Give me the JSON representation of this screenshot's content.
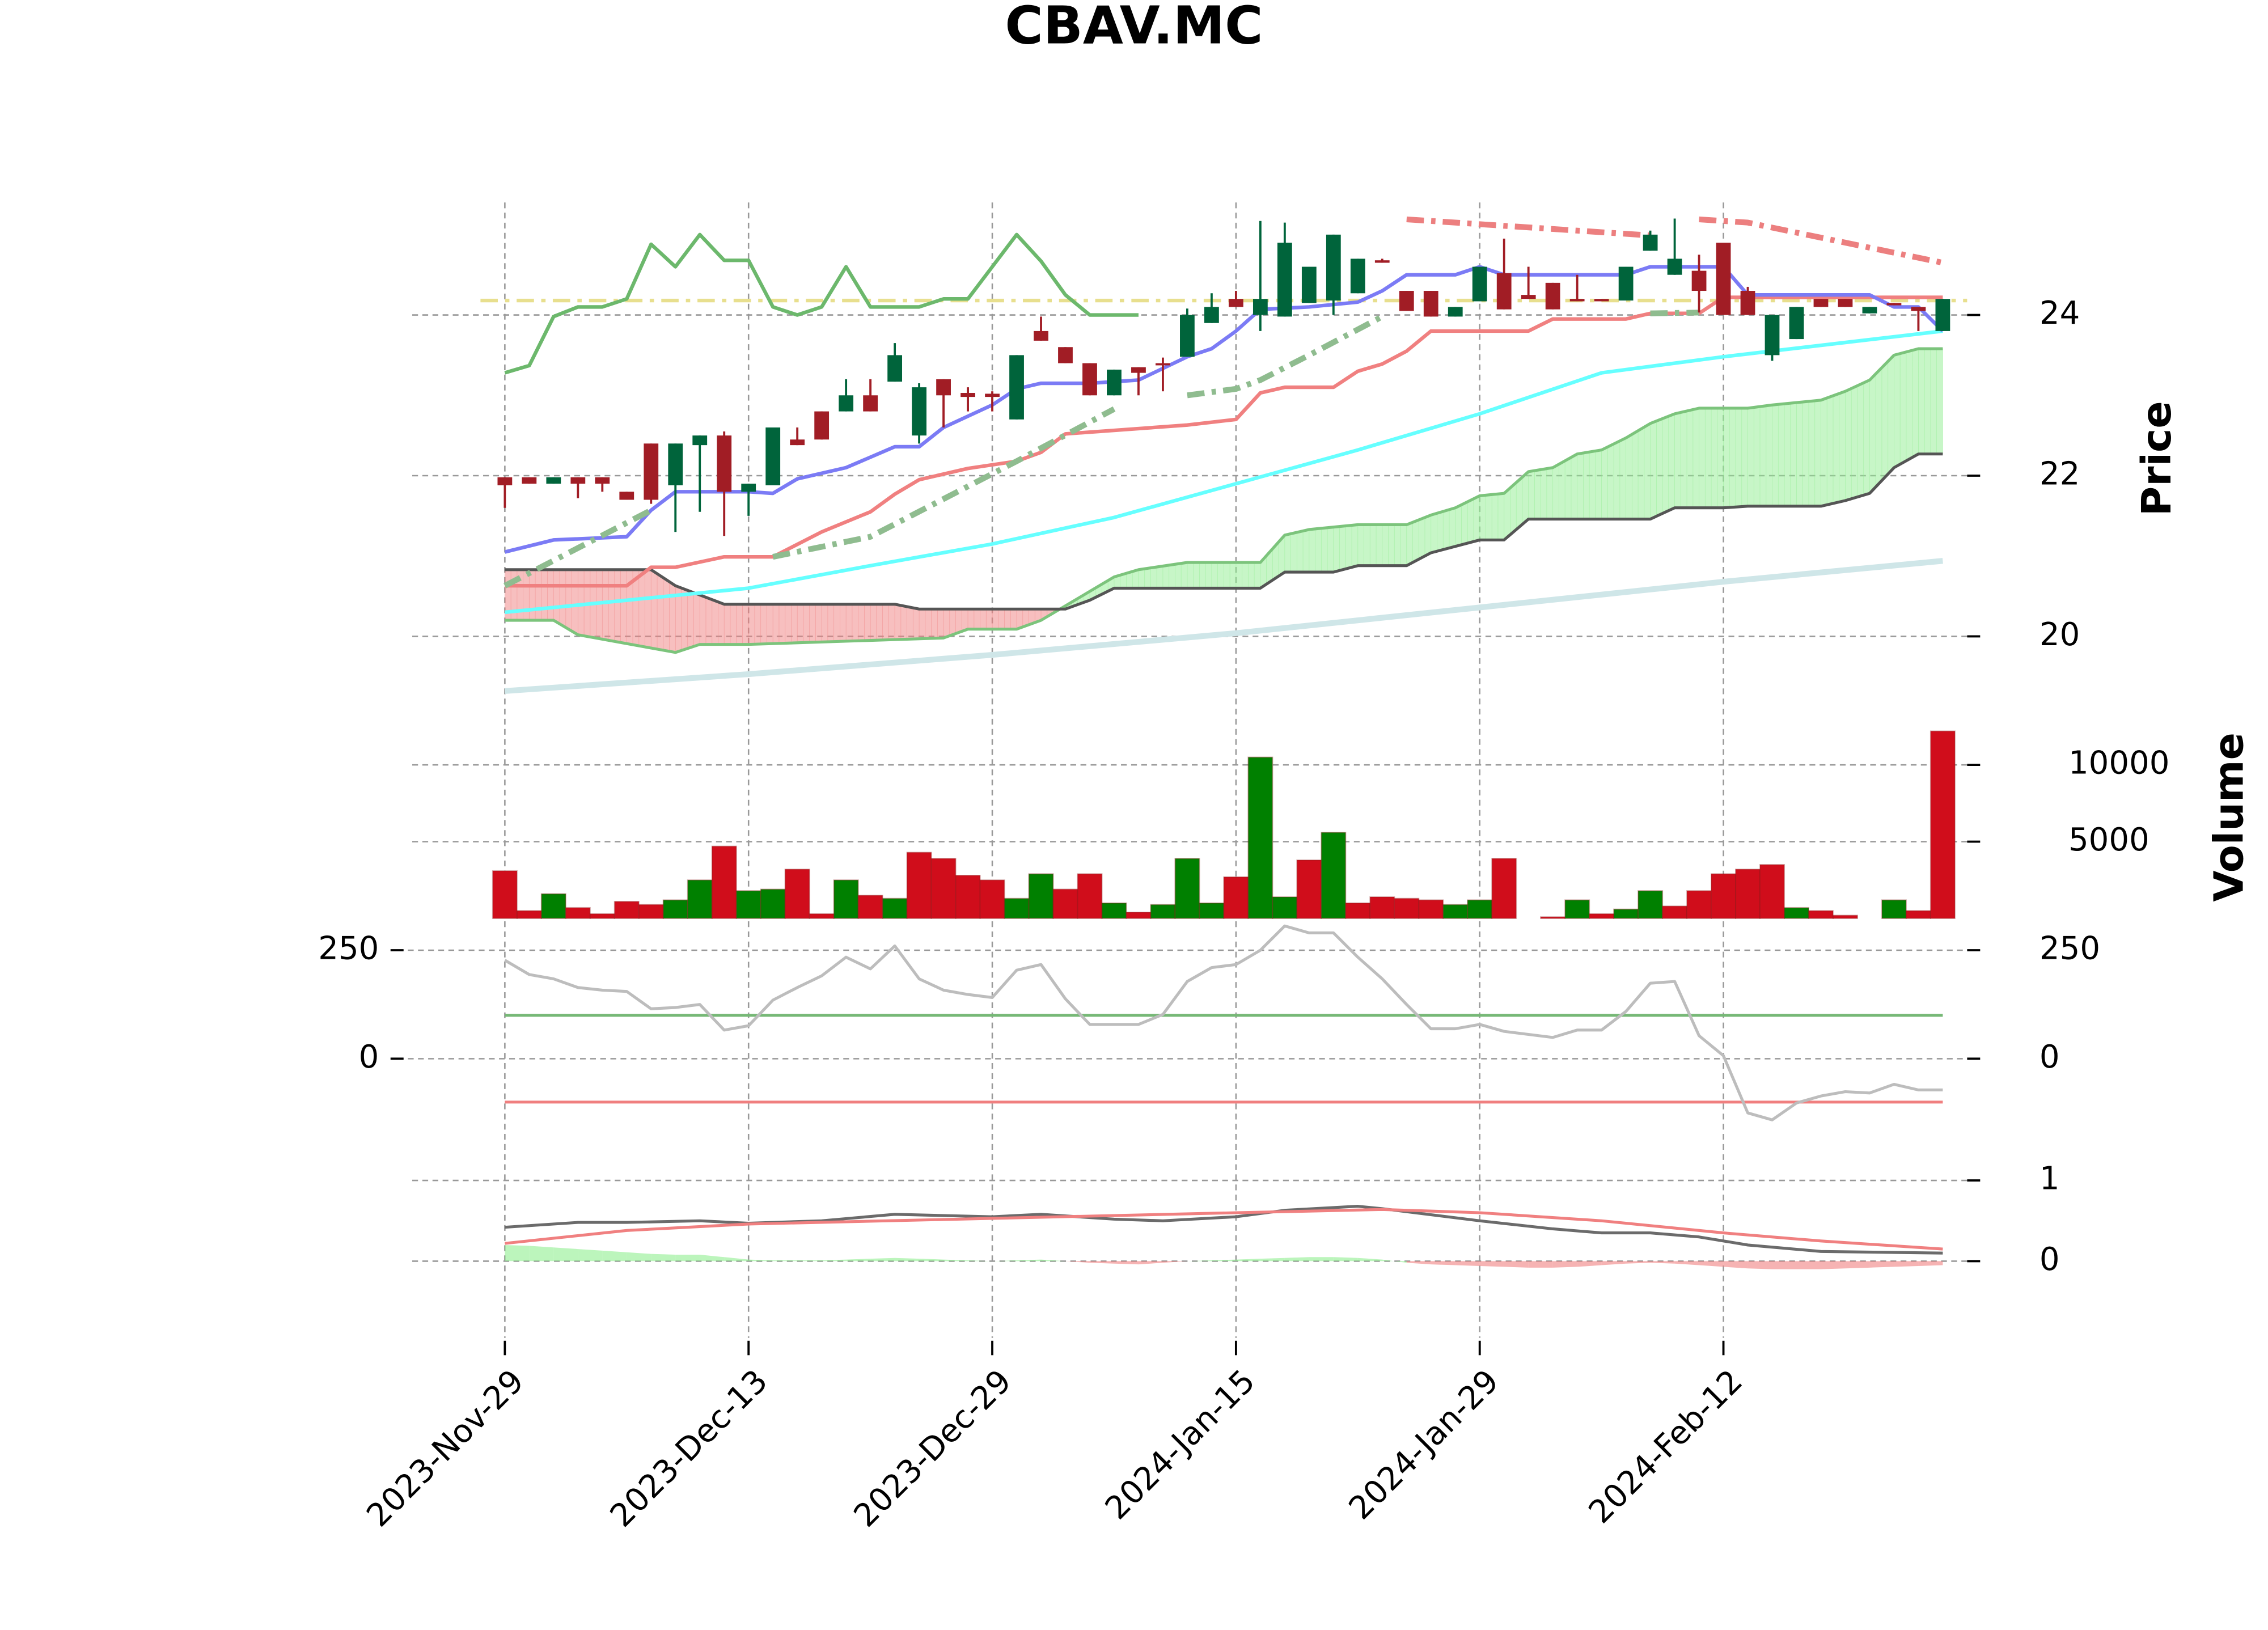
{
  "chart_data": [
    {
      "type": "candlestick",
      "title": "CBAV.MC",
      "ylabel": "Price",
      "categories": [
        "2023-Nov-29",
        null,
        null,
        null,
        null,
        null,
        null,
        null,
        null,
        null,
        "2023-Dec-13",
        null,
        null,
        null,
        null,
        null,
        null,
        null,
        null,
        null,
        "2023-Dec-29",
        null,
        null,
        null,
        null,
        null,
        null,
        null,
        null,
        null,
        "2024-Jan-15",
        null,
        null,
        null,
        null,
        null,
        null,
        null,
        null,
        null,
        "2024-Jan-29",
        null,
        null,
        null,
        null,
        null,
        null,
        null,
        null,
        null,
        "2024-Feb-12",
        null,
        null,
        null,
        null,
        null,
        null,
        null,
        null,
        null
      ],
      "xlim": [
        -3.8,
        60
      ],
      "ylim": [
        19.1,
        25.4
      ],
      "yticks": [
        20,
        22,
        24
      ],
      "grid": true,
      "up_color": "#00643b",
      "down_color": "#a11d25",
      "open": [
        21.98,
        21.98,
        21.9,
        21.98,
        21.98,
        21.8,
        22.4,
        21.88,
        22.38,
        22.5,
        21.8,
        21.88,
        22.45,
        22.8,
        22.8,
        23.0,
        23.17,
        22.5,
        23.2,
        23.03,
        23.02,
        22.7,
        23.8,
        23.6,
        23.4,
        23.0,
        23.35,
        23.4,
        23.48,
        23.9,
        24.2,
        24.0,
        23.98,
        24.15,
        24.18,
        24.27,
        24.68,
        24.3,
        24.3,
        23.98,
        24.17,
        24.52,
        24.25,
        24.4,
        24.2,
        24.2,
        24.18,
        24.8,
        24.5,
        24.55,
        24.9,
        24.3,
        23.5,
        23.7,
        24.2,
        24.2,
        24.02,
        24.15,
        24.1,
        23.8
      ],
      "high": [
        21.98,
        21.98,
        21.98,
        21.98,
        21.98,
        21.8,
        22.4,
        22.4,
        22.5,
        22.55,
        21.9,
        22.6,
        22.6,
        22.8,
        23.2,
        23.2,
        23.65,
        23.15,
        23.2,
        23.1,
        23.05,
        23.5,
        23.98,
        23.6,
        23.4,
        23.32,
        23.35,
        23.47,
        24.08,
        24.27,
        24.3,
        25.17,
        25.15,
        24.6,
        25.0,
        24.7,
        24.7,
        24.3,
        24.3,
        24.1,
        24.6,
        24.95,
        24.6,
        24.4,
        24.5,
        24.2,
        24.6,
        25.05,
        25.2,
        24.75,
        24.9,
        24.35,
        24.0,
        24.1,
        24.2,
        24.2,
        24.1,
        24.15,
        24.1,
        24.2
      ],
      "low": [
        21.6,
        21.9,
        21.9,
        21.72,
        21.8,
        21.7,
        21.65,
        21.3,
        21.55,
        21.25,
        21.5,
        21.88,
        22.38,
        22.45,
        22.8,
        22.8,
        23.17,
        22.4,
        22.6,
        22.8,
        22.8,
        22.7,
        23.68,
        23.4,
        23.0,
        23.0,
        23.0,
        23.05,
        23.48,
        23.9,
        24.1,
        23.8,
        23.98,
        24.15,
        24.0,
        24.27,
        24.65,
        24.05,
        23.98,
        23.98,
        24.17,
        24.07,
        24.2,
        24.07,
        24.17,
        24.17,
        24.18,
        24.8,
        24.5,
        24.03,
        24.0,
        24.0,
        23.43,
        23.7,
        24.1,
        24.1,
        24.02,
        24.12,
        23.8,
        23.8
      ],
      "close": [
        21.88,
        21.9,
        21.98,
        21.9,
        21.9,
        21.7,
        21.7,
        22.4,
        22.5,
        21.8,
        21.9,
        22.6,
        22.38,
        22.45,
        23.0,
        22.8,
        23.5,
        23.1,
        23.0,
        22.98,
        22.98,
        23.5,
        23.68,
        23.4,
        23.0,
        23.32,
        23.28,
        23.38,
        24.0,
        24.1,
        24.1,
        24.2,
        24.9,
        24.6,
        25.0,
        24.7,
        24.65,
        24.05,
        23.98,
        24.1,
        24.6,
        24.07,
        24.2,
        24.07,
        24.17,
        24.17,
        24.6,
        25.0,
        24.7,
        24.3,
        24.0,
        24.0,
        24.0,
        24.1,
        24.1,
        24.1,
        24.1,
        24.12,
        24.05,
        24.2
      ],
      "cloud": {
        "up_fill": "#90ee90",
        "down_fill": "#f08080",
        "span_a": {
          "color": "#7cc47c",
          "x": [
            0,
            2,
            3,
            7,
            8,
            10,
            18,
            19,
            21,
            22,
            23,
            24,
            25,
            26,
            28,
            31,
            32,
            33,
            35,
            37,
            38,
            39,
            40,
            41,
            42,
            43,
            44,
            45,
            46,
            47,
            48,
            49,
            50,
            51,
            52,
            54,
            55,
            56,
            57,
            58,
            59
          ],
          "values": [
            20.2,
            20.2,
            20.02,
            19.8,
            19.9,
            19.9,
            19.98,
            20.09,
            20.09,
            20.2,
            20.38,
            20.56,
            20.74,
            20.83,
            20.92,
            20.92,
            21.26,
            21.33,
            21.39,
            21.39,
            21.51,
            21.6,
            21.75,
            21.78,
            22.05,
            22.1,
            22.27,
            22.32,
            22.47,
            22.65,
            22.77,
            22.84,
            22.84,
            22.84,
            22.88,
            22.94,
            23.05,
            23.19,
            23.5,
            23.58,
            23.58
          ]
        },
        "span_b": {
          "color": "#555555",
          "x": [
            0,
            6,
            7,
            9,
            16,
            17,
            23,
            24,
            25,
            30,
            31,
            32,
            34,
            35,
            37,
            38,
            40,
            41,
            42,
            47,
            48,
            50,
            51,
            54,
            55,
            56,
            57,
            58,
            59
          ],
          "values": [
            20.83,
            20.83,
            20.63,
            20.4,
            20.4,
            20.34,
            20.34,
            20.45,
            20.6,
            20.6,
            20.6,
            20.8,
            20.8,
            20.88,
            20.88,
            21.04,
            21.2,
            21.2,
            21.46,
            21.46,
            21.6,
            21.6,
            21.62,
            21.62,
            21.69,
            21.78,
            22.1,
            22.27,
            22.27
          ]
        }
      },
      "overlays": [
        {
          "color": "#cfe6e8",
          "width": 4,
          "style": "solid",
          "x": [
            0,
            10,
            20,
            30,
            40,
            50,
            59
          ],
          "values": [
            19.32,
            19.53,
            19.77,
            20.04,
            20.36,
            20.68,
            20.94
          ]
        },
        {
          "color": "#66ffff",
          "width": 2.5,
          "style": "solid",
          "x": [
            0,
            5,
            10,
            15,
            20,
            25,
            30,
            35,
            40,
            45,
            50,
            59
          ],
          "values": [
            20.3,
            20.45,
            20.6,
            20.88,
            21.15,
            21.48,
            21.9,
            22.32,
            22.77,
            23.28,
            23.48,
            23.8
          ]
        },
        {
          "color": "#e8df8e",
          "width": 2.5,
          "style": "dashdot",
          "x": [
            -1,
            60
          ],
          "values": [
            24.18,
            24.18
          ]
        },
        {
          "color": "#6cb86c",
          "width": 2.5,
          "style": "solid",
          "x": [
            0,
            1,
            2,
            3,
            4,
            5,
            6,
            7,
            8,
            9,
            10,
            11,
            12,
            13,
            14,
            15,
            16,
            17,
            18,
            19,
            20,
            21,
            22,
            23,
            24,
            25,
            26
          ],
          "values": [
            23.28,
            23.37,
            23.98,
            24.1,
            24.1,
            24.2,
            24.88,
            24.6,
            25.0,
            24.68,
            24.68,
            24.1,
            24.0,
            24.1,
            24.6,
            24.1,
            24.1,
            24.1,
            24.2,
            24.2,
            24.6,
            25.0,
            24.67,
            24.25,
            24.0,
            24.0,
            24.0
          ]
        },
        {
          "color": "#f08080",
          "width": 2.5,
          "style": "solid",
          "x": [
            0,
            5,
            6,
            7,
            9,
            11,
            13,
            15,
            16,
            17,
            19,
            21,
            22,
            23,
            28,
            30,
            31,
            32,
            34,
            35,
            36,
            37,
            38,
            42,
            43,
            46,
            47,
            49,
            50,
            59
          ],
          "values": [
            20.63,
            20.63,
            20.86,
            20.86,
            20.99,
            20.99,
            21.3,
            21.55,
            21.77,
            21.95,
            22.09,
            22.18,
            22.29,
            22.52,
            22.63,
            22.7,
            23.03,
            23.1,
            23.1,
            23.3,
            23.39,
            23.55,
            23.8,
            23.8,
            23.95,
            23.95,
            24.02,
            24.02,
            24.22,
            24.22
          ]
        },
        {
          "color": "#7b7bf5",
          "width": 2.5,
          "style": "solid",
          "x": [
            0,
            2,
            5,
            6,
            7,
            10,
            11,
            12,
            14,
            16,
            17,
            18,
            20,
            21,
            22,
            24,
            26,
            28,
            29,
            30,
            31,
            33,
            35,
            36,
            37,
            39,
            40,
            41,
            46,
            47,
            49,
            50,
            51,
            52,
            56,
            57,
            58,
            59
          ],
          "values": [
            21.05,
            21.2,
            21.24,
            21.57,
            21.8,
            21.8,
            21.78,
            21.96,
            22.1,
            22.36,
            22.36,
            22.6,
            22.88,
            23.08,
            23.15,
            23.15,
            23.19,
            23.48,
            23.58,
            23.8,
            24.07,
            24.1,
            24.16,
            24.3,
            24.5,
            24.5,
            24.6,
            24.5,
            24.5,
            24.6,
            24.6,
            24.6,
            24.25,
            24.25,
            24.25,
            24.1,
            24.1,
            23.8
          ]
        },
        {
          "color": "#8fbc8f",
          "width": 4,
          "style": "dashdot",
          "x": [
            0,
            6,
            null,
            11,
            15,
            21,
            25,
            null,
            28,
            30,
            31,
            33,
            36,
            null,
            47,
            49
          ],
          "values": [
            20.63,
            21.57,
            null,
            20.99,
            21.24,
            22.18,
            22.83,
            null,
            23.0,
            23.08,
            23.19,
            23.5,
            23.98,
            null,
            24.02,
            24.03
          ]
        },
        {
          "color": "#ec7f7f",
          "width": 4,
          "style": "dashdot",
          "x": [
            37,
            47,
            null,
            49,
            51,
            59
          ],
          "values": [
            25.19,
            24.99,
            null,
            25.19,
            25.15,
            24.65
          ]
        }
      ]
    },
    {
      "type": "bar",
      "ylabel": "Volume",
      "ylim": [
        0,
        13000
      ],
      "yticks": [
        5000,
        10000
      ],
      "grid": true,
      "values": [
        3100,
        500,
        1600,
        700,
        300,
        1100,
        900,
        1200,
        2500,
        4700,
        1800,
        1900,
        3200,
        300,
        2500,
        1500,
        1300,
        4300,
        3900,
        2800,
        2500,
        1300,
        2900,
        1900,
        2900,
        1000,
        400,
        900,
        3900,
        1000,
        2700,
        10500,
        1400,
        3800,
        5600,
        1000,
        1400,
        1300,
        1200,
        900,
        1200,
        3900,
        0,
        100,
        1200,
        300,
        600,
        1800,
        800,
        1800,
        2900,
        3200,
        3500,
        700,
        500,
        200,
        0,
        1200,
        500,
        12200
      ],
      "colors": [
        "#d00d1b",
        "#d00d1b",
        "#008000",
        "#d00d1b",
        "#d00d1b",
        "#d00d1b",
        "#d00d1b",
        "#008000",
        "#008000",
        "#d00d1b",
        "#008000",
        "#008000",
        "#d00d1b",
        "#d00d1b",
        "#008000",
        "#d00d1b",
        "#008000",
        "#d00d1b",
        "#d00d1b",
        "#d00d1b",
        "#d00d1b",
        "#008000",
        "#008000",
        "#d00d1b",
        "#d00d1b",
        "#008000",
        "#d00d1b",
        "#008000",
        "#008000",
        "#008000",
        "#d00d1b",
        "#008000",
        "#008000",
        "#d00d1b",
        "#008000",
        "#d00d1b",
        "#d00d1b",
        "#d00d1b",
        "#d00d1b",
        "#008000",
        "#008000",
        "#d00d1b",
        "#d00d1b",
        "#d00d1b",
        "#008000",
        "#d00d1b",
        "#008000",
        "#008000",
        "#d00d1b",
        "#d00d1b",
        "#d00d1b",
        "#d00d1b",
        "#d00d1b",
        "#008000",
        "#d00d1b",
        "#d00d1b",
        "#008000",
        "#008000",
        "#d00d1b",
        "#d00d1b"
      ]
    },
    {
      "type": "line",
      "ylim": [
        -210,
        320
      ],
      "yticks": [
        0,
        250
      ],
      "grid": true,
      "hlines": [
        {
          "value": 100,
          "color": "#76b876"
        },
        {
          "value": -100,
          "color": "#f07f7f"
        }
      ],
      "series": [
        {
          "color": "#bdbdbd",
          "values": [
            227,
            194,
            184,
            164,
            158,
            155,
            115,
            118,
            125,
            66,
            76,
            135,
            164,
            191,
            234,
            207,
            260,
            184,
            158,
            148,
            141,
            204,
            217,
            138,
            79,
            79,
            79,
            102,
            178,
            210,
            217,
            250,
            306,
            290,
            290,
            234,
            184,
            125,
            69,
            69,
            79,
            63,
            56,
            49,
            66,
            66,
            109,
            174,
            178,
            53,
            7,
            -125,
            -141,
            -102,
            -86,
            -76,
            -79,
            -59,
            -72,
            -72
          ]
        }
      ]
    },
    {
      "type": "line",
      "ylim": [
        -0.95,
        1.2
      ],
      "yticks": [
        0,
        1
      ],
      "grid": true,
      "histogram": {
        "up_color": "#90ee90",
        "down_color": "#f08080",
        "values": [
          0.2,
          0.19,
          0.17,
          0.15,
          0.13,
          0.11,
          0.09,
          0.08,
          0.08,
          0.05,
          0.02,
          0.01,
          0.01,
          0.01,
          0.02,
          0.03,
          0.04,
          0.03,
          0.02,
          0.01,
          0.0,
          0.01,
          0.02,
          0.0,
          -0.02,
          -0.03,
          -0.04,
          -0.02,
          0.0,
          0.01,
          0.02,
          0.03,
          0.04,
          0.05,
          0.05,
          0.04,
          0.02,
          -0.02,
          -0.04,
          -0.05,
          -0.06,
          -0.07,
          -0.08,
          -0.08,
          -0.07,
          -0.05,
          -0.03,
          -0.02,
          -0.03,
          -0.05,
          -0.07,
          -0.09,
          -0.1,
          -0.1,
          -0.1,
          -0.09,
          -0.08,
          -0.07,
          -0.06,
          -0.05
        ]
      },
      "series": [
        {
          "color": "#6b6b6b",
          "x": [
            0,
            3,
            5,
            8,
            10,
            13,
            16,
            20,
            22,
            25,
            27,
            30,
            32,
            35,
            36,
            40,
            43,
            45,
            47,
            49,
            51,
            54,
            59
          ],
          "values": [
            0.42,
            0.48,
            0.48,
            0.5,
            0.47,
            0.5,
            0.58,
            0.55,
            0.58,
            0.52,
            0.5,
            0.55,
            0.63,
            0.68,
            0.65,
            0.5,
            0.4,
            0.35,
            0.35,
            0.3,
            0.2,
            0.12,
            0.1
          ]
        },
        {
          "color": "#f08080",
          "x": [
            0,
            5,
            10,
            20,
            30,
            36,
            40,
            45,
            50,
            54,
            59
          ],
          "values": [
            0.22,
            0.38,
            0.46,
            0.53,
            0.6,
            0.64,
            0.6,
            0.5,
            0.35,
            0.25,
            0.15
          ]
        }
      ]
    }
  ]
}
